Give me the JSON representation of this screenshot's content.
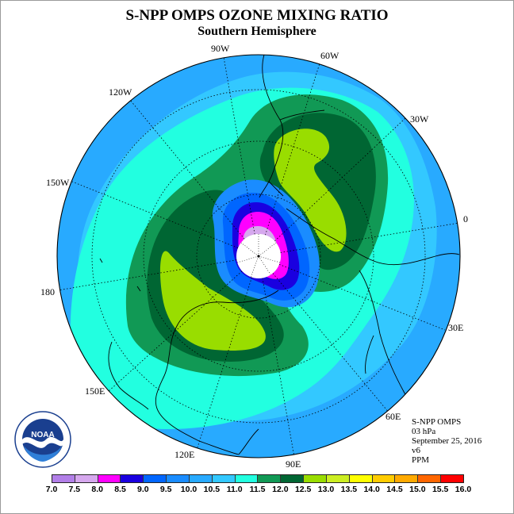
{
  "title": "S-NPP OMPS OZONE MIXING RATIO",
  "subtitle": "Southern Hemisphere",
  "longitude_labels": [
    "90W",
    "60W",
    "30W",
    "0",
    "30E",
    "60E",
    "90E",
    "120E",
    "150E",
    "180",
    "150W",
    "120W"
  ],
  "info": {
    "instrument": "S-NPP OMPS",
    "level": "03 hPa",
    "date": "September 25, 2016",
    "version": "v6",
    "units": "PPM"
  },
  "logo": {
    "text": "NOAA",
    "ring_text": "NATIONAL OCEANIC AND ATMOSPHERIC ADMINISTRATION U.S. DEPARTMENT OF COMMERCE"
  },
  "colorbar": {
    "ticks": [
      "7.0",
      "7.5",
      "8.0",
      "8.5",
      "9.0",
      "9.5",
      "10.0",
      "10.5",
      "11.0",
      "11.5",
      "12.0",
      "12.5",
      "13.0",
      "13.5",
      "14.0",
      "14.5",
      "15.0",
      "15.5",
      "16.0"
    ],
    "colors": [
      "#b27fe8",
      "#d6a8ee",
      "#ff00ff",
      "#1a00e0",
      "#0066ff",
      "#1a8cff",
      "#28aaff",
      "#33c8ff",
      "#22ffe0",
      "#119955",
      "#006633",
      "#99dd00",
      "#ccee22",
      "#ffff00",
      "#ffcc00",
      "#ffaa00",
      "#ff6600",
      "#ff0000",
      "#8b5a3c"
    ]
  },
  "map_colors": {
    "ring_9_5": "#1a8cff",
    "bg_10_0": "#28aaff",
    "lvl_10_5": "#33c8ff",
    "lvl_11_0": "#22ffe0",
    "lvl_11_5": "#119955",
    "lvl_12_0": "#006633",
    "lvl_12_5": "#99dd00",
    "lvl_9_0": "#0066ff",
    "lvl_8_5": "#1a00e0",
    "lvl_8_0": "#ff00ff",
    "lvl_7_5": "#d6a8ee",
    "lvl_7_0": "#b27fe8"
  }
}
